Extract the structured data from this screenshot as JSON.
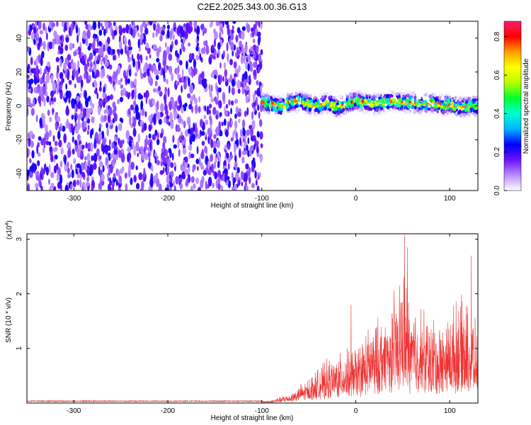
{
  "title": "C2E2.2025.343.00.36.G13",
  "chart_data": [
    {
      "type": "heatmap",
      "xlabel": "Height of straight line (km)",
      "ylabel": "Frequency (Hz)",
      "xlim": [
        -350,
        130
      ],
      "ylim": [
        -50,
        50
      ],
      "xticks": [
        -300,
        -200,
        -100,
        0,
        100
      ],
      "yticks": [
        -40,
        -20,
        0,
        20,
        40
      ],
      "noise_region_x": [
        -350,
        -100
      ],
      "signal_region_x": [
        -100,
        130
      ],
      "signal_track": {
        "x": [
          -100,
          -90,
          -80,
          -70,
          -60,
          -50,
          -40,
          -30,
          -20,
          -10,
          0,
          10,
          20,
          30,
          40,
          50,
          60,
          70,
          80,
          90,
          100,
          110,
          120,
          130
        ],
        "freq": [
          2,
          1,
          -1,
          2,
          3,
          1,
          0,
          2,
          -1,
          1,
          3,
          2,
          1,
          2,
          3,
          2,
          2,
          1,
          2,
          0,
          1,
          -1,
          0,
          0
        ]
      },
      "colorbar": {
        "label": "Normalized spectral amplitude",
        "range": [
          0.0,
          0.88
        ],
        "ticks": [
          0.0,
          0.2,
          0.4,
          0.6,
          0.8
        ],
        "colors": [
          "#ffffff",
          "#b98bff",
          "#6b12ff",
          "#0000ff",
          "#00b4ff",
          "#00ffd0",
          "#00ff30",
          "#b8ff00",
          "#ffff00",
          "#ffa000",
          "#ff0000",
          "#ff1a6e"
        ]
      },
      "grid": false
    },
    {
      "type": "line",
      "xlabel": "Height of straight line (km)",
      "ylabel": "SNR (10 * v/v)",
      "multiplier_label": "(x10",
      "multiplier_exp": "4",
      "multiplier_close": ")",
      "xlim": [
        -350,
        130
      ],
      "ylim": [
        0,
        3.1
      ],
      "xticks": [
        -300,
        -200,
        -100,
        0,
        100
      ],
      "yticks": [
        1,
        2,
        3
      ],
      "color": "#ee3333",
      "envelope": {
        "x": [
          -350,
          -100,
          -90,
          -80,
          -70,
          -60,
          -50,
          -40,
          -30,
          -20,
          -10,
          0,
          10,
          20,
          30,
          40,
          50,
          60,
          70,
          80,
          90,
          100,
          110,
          120,
          130
        ],
        "y": [
          0.03,
          0.04,
          0.06,
          0.12,
          0.2,
          0.35,
          0.5,
          0.7,
          0.85,
          0.95,
          1.05,
          1.15,
          1.4,
          1.6,
          1.8,
          2.1,
          2.6,
          2.0,
          1.9,
          1.7,
          1.6,
          1.8,
          2.1,
          1.9,
          1.5
        ]
      },
      "peaks": [
        {
          "x": 52,
          "y": 3.08
        },
        {
          "x": 55,
          "y": 2.85
        },
        {
          "x": 123,
          "y": 2.7
        },
        {
          "x": -5,
          "y": 1.8
        }
      ],
      "grid": false
    }
  ]
}
